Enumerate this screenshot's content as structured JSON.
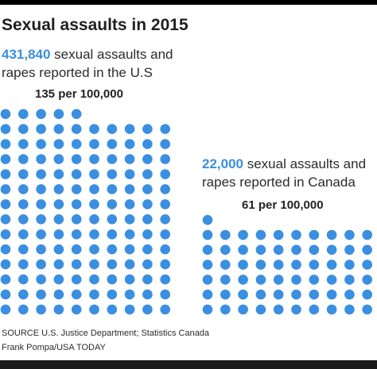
{
  "title": "Sexual assaults in 2015",
  "accent_color": "#3a8fe0",
  "us": {
    "number": "431,840",
    "description_line1": " sexual assaults and",
    "description_line2": "rapes reported in the U.S",
    "rate_label": "135 per 100,000"
  },
  "canada": {
    "number": "22,000",
    "description_line1": " sexual assaults and",
    "description_line2": "rapes reported in Canada",
    "rate_label": "61 per 100,000"
  },
  "footer": {
    "source": "SOURCE U.S. Justice Department; Statistics Canada",
    "credit": "Frank Pompa/USA TODAY"
  },
  "chart_data": {
    "type": "pictogram",
    "title": "Sexual assaults in 2015",
    "unit": "reported sexual assaults and rapes per 100,000",
    "series": [
      {
        "name": "U.S.",
        "value": 135,
        "total": 431840
      },
      {
        "name": "Canada",
        "value": 61,
        "total": 22000
      }
    ]
  }
}
